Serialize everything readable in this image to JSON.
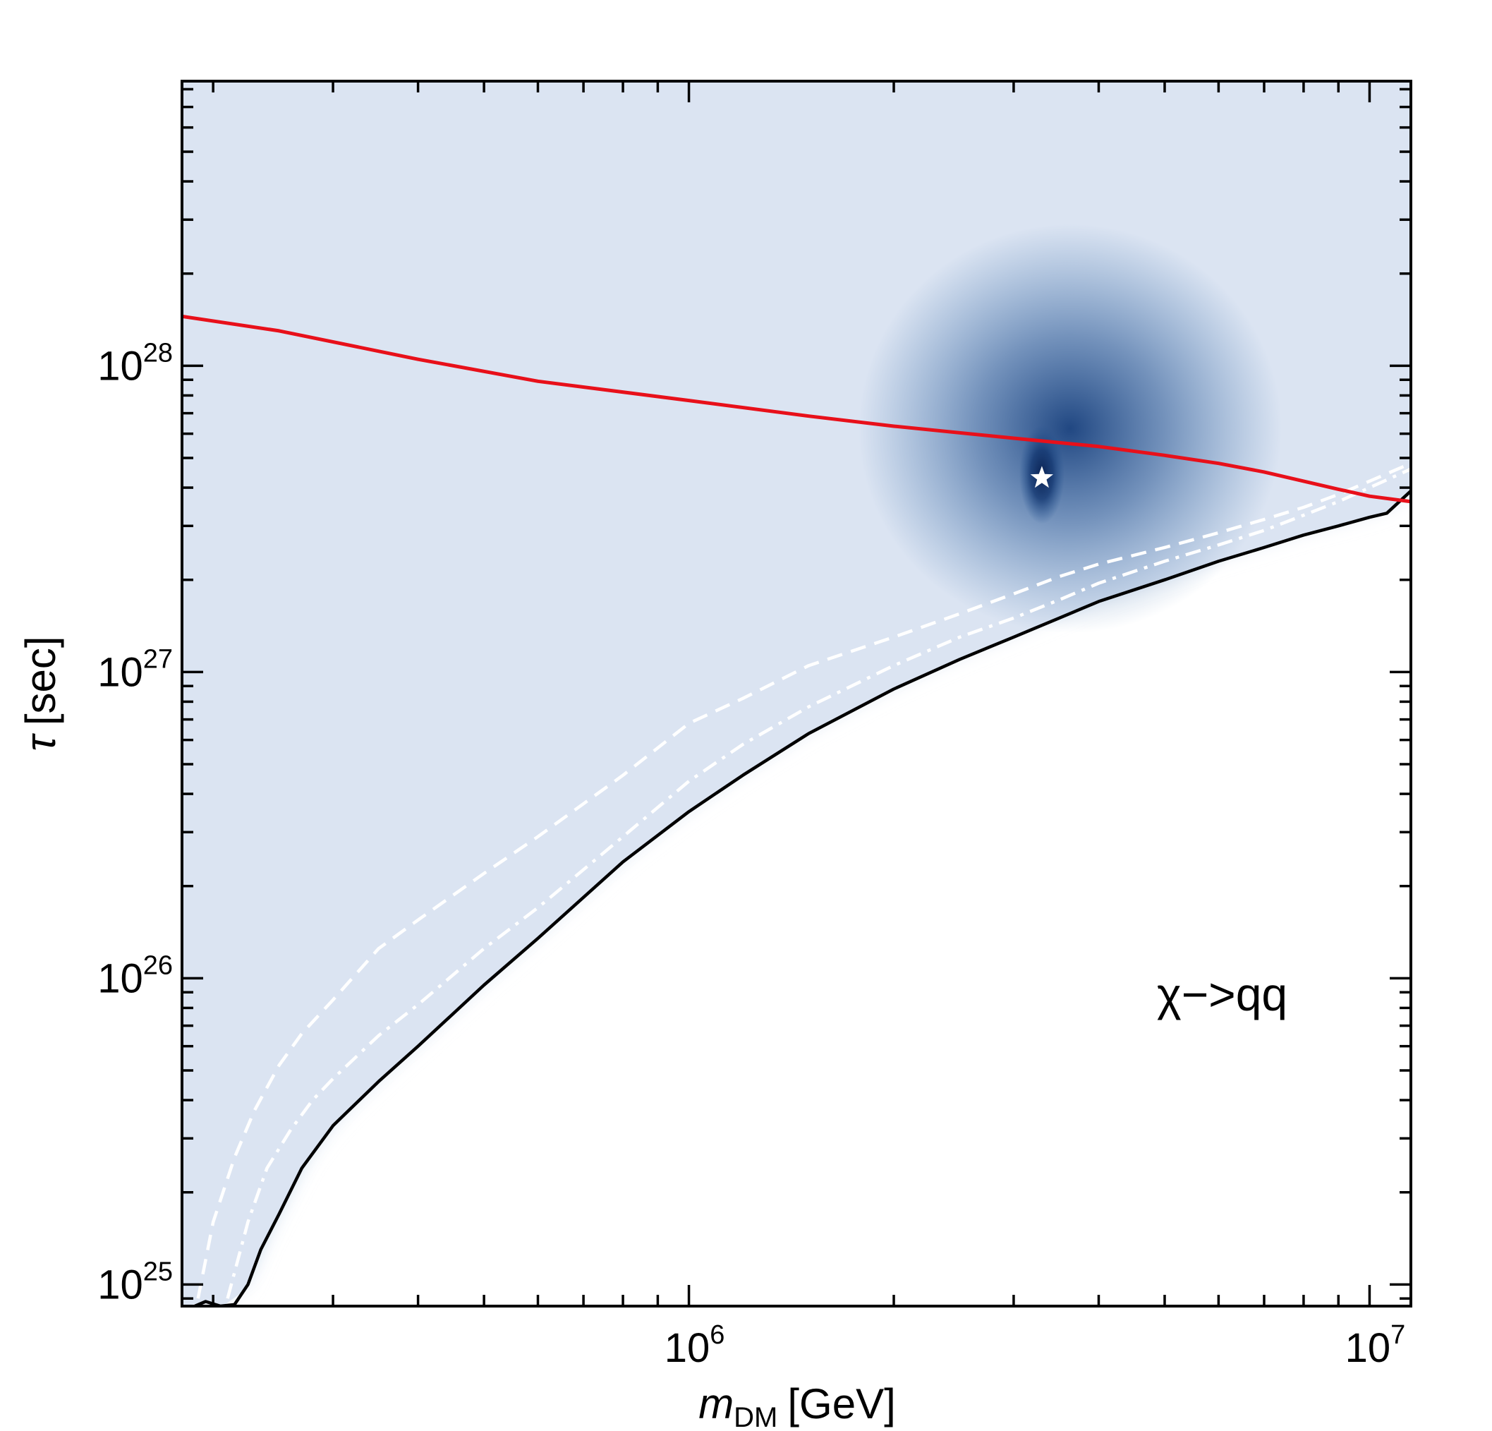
{
  "chart_data": {
    "type": "heatmap",
    "title": "",
    "xlabel": {
      "symbol": "m",
      "subscript": "DM",
      "unit": "[GeV]"
    },
    "ylabel": {
      "symbol": "τ",
      "unit": "[sec]"
    },
    "xscale": "log",
    "yscale": "log",
    "xlim": [
      180000,
      11500000
    ],
    "ylim": [
      8.5e+24,
      8.5e+28
    ],
    "x_ticks": [
      {
        "value": 1000000,
        "base": "10",
        "exp": "6"
      },
      {
        "value": 10000000,
        "base": "10",
        "exp": "7"
      }
    ],
    "y_ticks": [
      {
        "value": 1e+25,
        "base": "10",
        "exp": "25"
      },
      {
        "value": 1e+26,
        "base": "10",
        "exp": "26"
      },
      {
        "value": 1e+27,
        "base": "10",
        "exp": "27"
      },
      {
        "value": 1e+28,
        "base": "10",
        "exp": "28"
      }
    ],
    "annotation": "χ−>qq",
    "colormap": [
      "#ffffff",
      "#dbe4f2",
      "#a6cfe0",
      "#5fa4cc",
      "#3a80bb",
      "#2a65a6",
      "#163f7a",
      "#0b2a5e"
    ],
    "best_fit": {
      "m": 3300000,
      "tau": 4.3e+27,
      "marker": "star",
      "color": "#ffffff"
    },
    "series": [
      {
        "style": "solid",
        "color": "#e8101a",
        "x": [
          180000,
          250000,
          400000,
          600000,
          1000000,
          1500000,
          2000000,
          3000000,
          4000000,
          5000000,
          6000000,
          7000000,
          8000000,
          9000000,
          10000000,
          11500000
        ],
        "y": [
          1.45e+28,
          1.3e+28,
          1.05e+28,
          8.9e+27,
          7.7e+27,
          6.85e+27,
          6.35e+27,
          5.8e+27,
          5.45e+27,
          5.1e+27,
          4.8e+27,
          4.5e+27,
          4.2e+27,
          3.95e+27,
          3.75e+27,
          3.6e+27
        ]
      },
      {
        "style": "dashed",
        "color": "#ffffff",
        "x": [
          190000,
          200000,
          215000,
          230000,
          250000,
          270000,
          300000,
          350000,
          400000,
          500000,
          600000,
          800000,
          1000000,
          1200000,
          1500000,
          2000000,
          2500000,
          3000000,
          3500000,
          4000000,
          5000000,
          6000000,
          7000000,
          8000000,
          9000000,
          10000000,
          11500000
        ],
        "y": [
          9e+24,
          1.6e+25,
          2.6e+25,
          3.7e+25,
          5.2e+25,
          6.6e+25,
          8.5e+25,
          1.25e+26,
          1.55e+26,
          2.2e+26,
          2.9e+26,
          4.6e+26,
          6.8e+26,
          8.2e+26,
          1.05e+27,
          1.3e+27,
          1.55e+27,
          1.8e+27,
          2.05e+27,
          2.25e+27,
          2.55e+27,
          2.85e+27,
          3.15e+27,
          3.45e+27,
          3.8e+27,
          4.2e+27,
          4.8e+27
        ]
      },
      {
        "style": "dashdot",
        "color": "#ffffff",
        "x": [
          210000,
          225000,
          240000,
          260000,
          280000,
          300000,
          350000,
          400000,
          500000,
          600000,
          800000,
          1000000,
          1200000,
          1500000,
          2000000,
          2500000,
          3000000,
          3500000,
          4000000,
          5000000,
          6000000,
          7000000,
          8000000,
          9000000,
          10000000,
          11500000
        ],
        "y": [
          9e+24,
          1.6e+25,
          2.4e+25,
          3.2e+25,
          4e+25,
          4.7e+25,
          6.5e+25,
          8.2e+25,
          1.25e+26,
          1.7e+26,
          2.9e+26,
          4.4e+26,
          5.8e+26,
          7.7e+26,
          1.05e+27,
          1.3e+27,
          1.5e+27,
          1.72e+27,
          1.95e+27,
          2.3e+27,
          2.6e+27,
          2.9e+27,
          3.25e+27,
          3.6e+27,
          4e+27,
          4.6e+27
        ]
      },
      {
        "style": "solid",
        "color": "#000000",
        "x": [
          188000,
          195000,
          205000,
          215000,
          225000,
          235000,
          250000,
          270000,
          300000,
          350000,
          400000,
          500000,
          600000,
          800000,
          1000000,
          1200000,
          1500000,
          2000000,
          2500000,
          3000000,
          3500000,
          4000000,
          5000000,
          6000000,
          7000000,
          8000000,
          9000000,
          10000000,
          10600000,
          11500000
        ],
        "y": [
          8.5e+24,
          8.8e+24,
          8.5e+24,
          8.6e+24,
          1e+25,
          1.3e+25,
          1.7e+25,
          2.4e+25,
          3.3e+25,
          4.6e+25,
          6e+25,
          9.5e+25,
          1.35e+26,
          2.4e+26,
          3.5e+26,
          4.6e+26,
          6.3e+26,
          8.8e+26,
          1.1e+27,
          1.3e+27,
          1.5e+27,
          1.7e+27,
          2e+27,
          2.3e+27,
          2.55e+27,
          2.8e+27,
          3e+27,
          3.2e+27,
          3.3e+27,
          3.9e+27
        ]
      }
    ]
  }
}
